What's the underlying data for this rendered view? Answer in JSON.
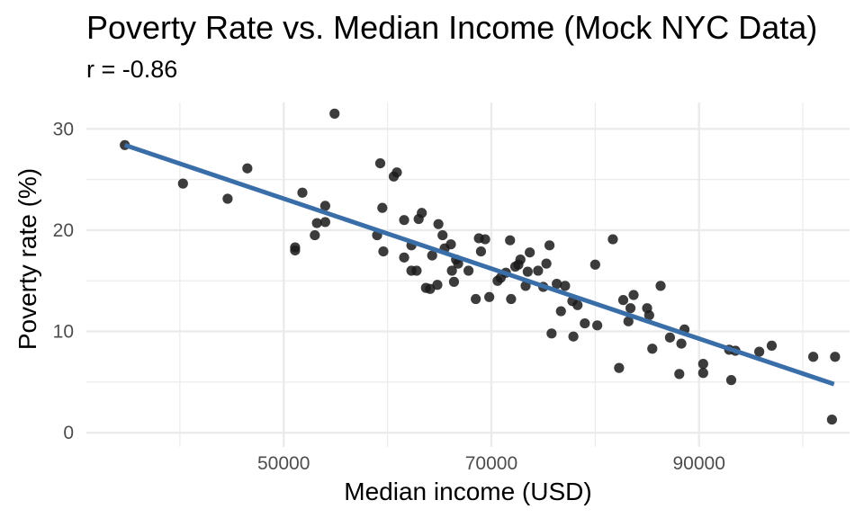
{
  "chart_data": {
    "type": "scatter",
    "title": "Poverty Rate vs. Median Income (Mock NYC Data)",
    "subtitle": "r = -0.86",
    "xlabel": "Median income (USD)",
    "ylabel": "Poverty rate (%)",
    "xlim": [
      31000,
      104500
    ],
    "ylim": [
      -1.4,
      32.6
    ],
    "x_ticks": [
      50000,
      70000,
      90000
    ],
    "x_tick_labels": [
      "50000",
      "70000",
      "90000"
    ],
    "y_ticks": [
      0,
      10,
      20,
      30
    ],
    "y_tick_labels": [
      "0",
      "10",
      "20",
      "30"
    ],
    "grid": true,
    "legend": "none",
    "colors": {
      "points": "#1a1a1a",
      "fit_line": "#3a6ea8",
      "grid": "#ebebeb"
    },
    "points": [
      [
        34700,
        28.4
      ],
      [
        40300,
        24.6
      ],
      [
        44600,
        23.1
      ],
      [
        46500,
        26.1
      ],
      [
        51100,
        18.3
      ],
      [
        51100,
        18.0
      ],
      [
        51800,
        23.7
      ],
      [
        53000,
        19.5
      ],
      [
        53200,
        20.7
      ],
      [
        54000,
        22.4
      ],
      [
        54000,
        20.8
      ],
      [
        54900,
        31.5
      ],
      [
        59000,
        19.5
      ],
      [
        59300,
        26.6
      ],
      [
        59500,
        22.2
      ],
      [
        59600,
        17.9
      ],
      [
        60600,
        25.3
      ],
      [
        60900,
        25.7
      ],
      [
        61600,
        21.0
      ],
      [
        61600,
        17.3
      ],
      [
        62300,
        18.5
      ],
      [
        62300,
        16.0
      ],
      [
        62800,
        16.0
      ],
      [
        63000,
        21.1
      ],
      [
        63300,
        21.7
      ],
      [
        63700,
        14.3
      ],
      [
        64100,
        14.2
      ],
      [
        64300,
        17.5
      ],
      [
        64800,
        14.6
      ],
      [
        64900,
        20.6
      ],
      [
        65300,
        19.5
      ],
      [
        65500,
        18.2
      ],
      [
        66100,
        18.6
      ],
      [
        66200,
        16.0
      ],
      [
        66400,
        14.9
      ],
      [
        66600,
        17.1
      ],
      [
        66800,
        16.7
      ],
      [
        67800,
        16.0
      ],
      [
        68500,
        13.2
      ],
      [
        68800,
        19.2
      ],
      [
        69000,
        17.9
      ],
      [
        69400,
        19.1
      ],
      [
        69800,
        13.4
      ],
      [
        70600,
        15.0
      ],
      [
        70900,
        15.3
      ],
      [
        71400,
        15.8
      ],
      [
        71800,
        19.0
      ],
      [
        71900,
        13.2
      ],
      [
        72300,
        16.4
      ],
      [
        72600,
        16.6
      ],
      [
        72800,
        17.1
      ],
      [
        73300,
        14.5
      ],
      [
        73500,
        15.9
      ],
      [
        73700,
        17.8
      ],
      [
        74500,
        16.0
      ],
      [
        75000,
        14.4
      ],
      [
        75300,
        16.7
      ],
      [
        75600,
        18.5
      ],
      [
        75800,
        9.8
      ],
      [
        76300,
        14.7
      ],
      [
        76700,
        12.0
      ],
      [
        77100,
        14.5
      ],
      [
        77800,
        13.0
      ],
      [
        77900,
        9.5
      ],
      [
        78300,
        12.6
      ],
      [
        79000,
        10.8
      ],
      [
        80000,
        16.6
      ],
      [
        80200,
        10.6
      ],
      [
        81700,
        19.1
      ],
      [
        82300,
        6.4
      ],
      [
        82700,
        13.1
      ],
      [
        83200,
        11.0
      ],
      [
        83400,
        12.3
      ],
      [
        83700,
        13.6
      ],
      [
        85000,
        12.3
      ],
      [
        85200,
        11.6
      ],
      [
        85500,
        8.3
      ],
      [
        86300,
        14.5
      ],
      [
        87200,
        9.4
      ],
      [
        88100,
        5.8
      ],
      [
        88300,
        8.8
      ],
      [
        88600,
        10.2
      ],
      [
        90400,
        6.8
      ],
      [
        90400,
        5.9
      ],
      [
        92900,
        8.2
      ],
      [
        93100,
        5.2
      ],
      [
        93500,
        8.1
      ],
      [
        95800,
        8.0
      ],
      [
        97000,
        8.6
      ],
      [
        101000,
        7.5
      ],
      [
        102800,
        1.3
      ],
      [
        103100,
        7.5
      ]
    ],
    "fit_line": {
      "x": [
        34700,
        103000
      ],
      "y": [
        28.4,
        4.8
      ]
    }
  }
}
